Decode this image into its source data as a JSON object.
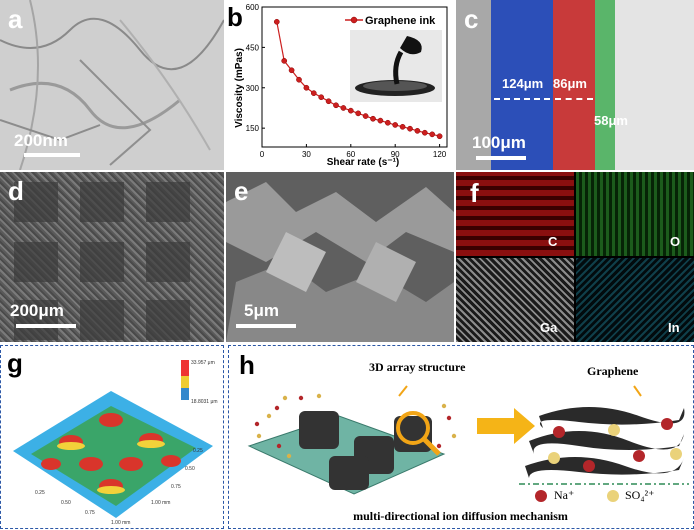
{
  "panels": {
    "a": {
      "label": "a",
      "scale": "200nm"
    },
    "b": {
      "label": "b"
    },
    "c": {
      "label": "c",
      "scale": "100μm",
      "dims": [
        "124μm",
        "86μm",
        "58μm"
      ]
    },
    "d": {
      "label": "d",
      "scale": "200μm"
    },
    "e": {
      "label": "e",
      "scale": "5μm"
    },
    "f": {
      "label": "f",
      "maps": [
        "C",
        "O",
        "Ga",
        "In"
      ]
    },
    "g": {
      "label": "g",
      "readout_top": "33.957 μm",
      "readout_bottom": "18.8031 μm",
      "ticks": [
        "0.25",
        "0.50",
        "0.75",
        "1.00 mm",
        "0.25",
        "0.50",
        "0.75",
        "1.00 mm"
      ]
    },
    "h": {
      "label": "h",
      "array_label": "3D array structure",
      "graphene_label": "Graphene",
      "legend_na": "Na⁺",
      "legend_so4": "SO₄²⁺",
      "caption": "multi-directional ion diffusion mechanism"
    }
  },
  "chart_data": {
    "type": "line",
    "series": [
      {
        "name": "Graphene ink",
        "x": [
          10,
          15,
          20,
          25,
          30,
          35,
          40,
          45,
          50,
          55,
          60,
          65,
          70,
          75,
          80,
          85,
          90,
          95,
          100,
          105,
          110,
          115,
          120
        ],
        "values": [
          545,
          400,
          365,
          330,
          300,
          280,
          265,
          250,
          235,
          225,
          215,
          205,
          195,
          185,
          178,
          170,
          162,
          155,
          148,
          140,
          133,
          127,
          120
        ]
      }
    ],
    "xlabel": "Shear rate (s⁻¹)",
    "ylabel": "Viscosity (mPas)",
    "xticks": [
      "0",
      "30",
      "60",
      "90",
      "120"
    ],
    "yticks": [
      "150",
      "300",
      "450",
      "600"
    ],
    "xlim": [
      0,
      125
    ],
    "ylim": [
      80,
      600
    ],
    "color": "#cc1f1f"
  }
}
